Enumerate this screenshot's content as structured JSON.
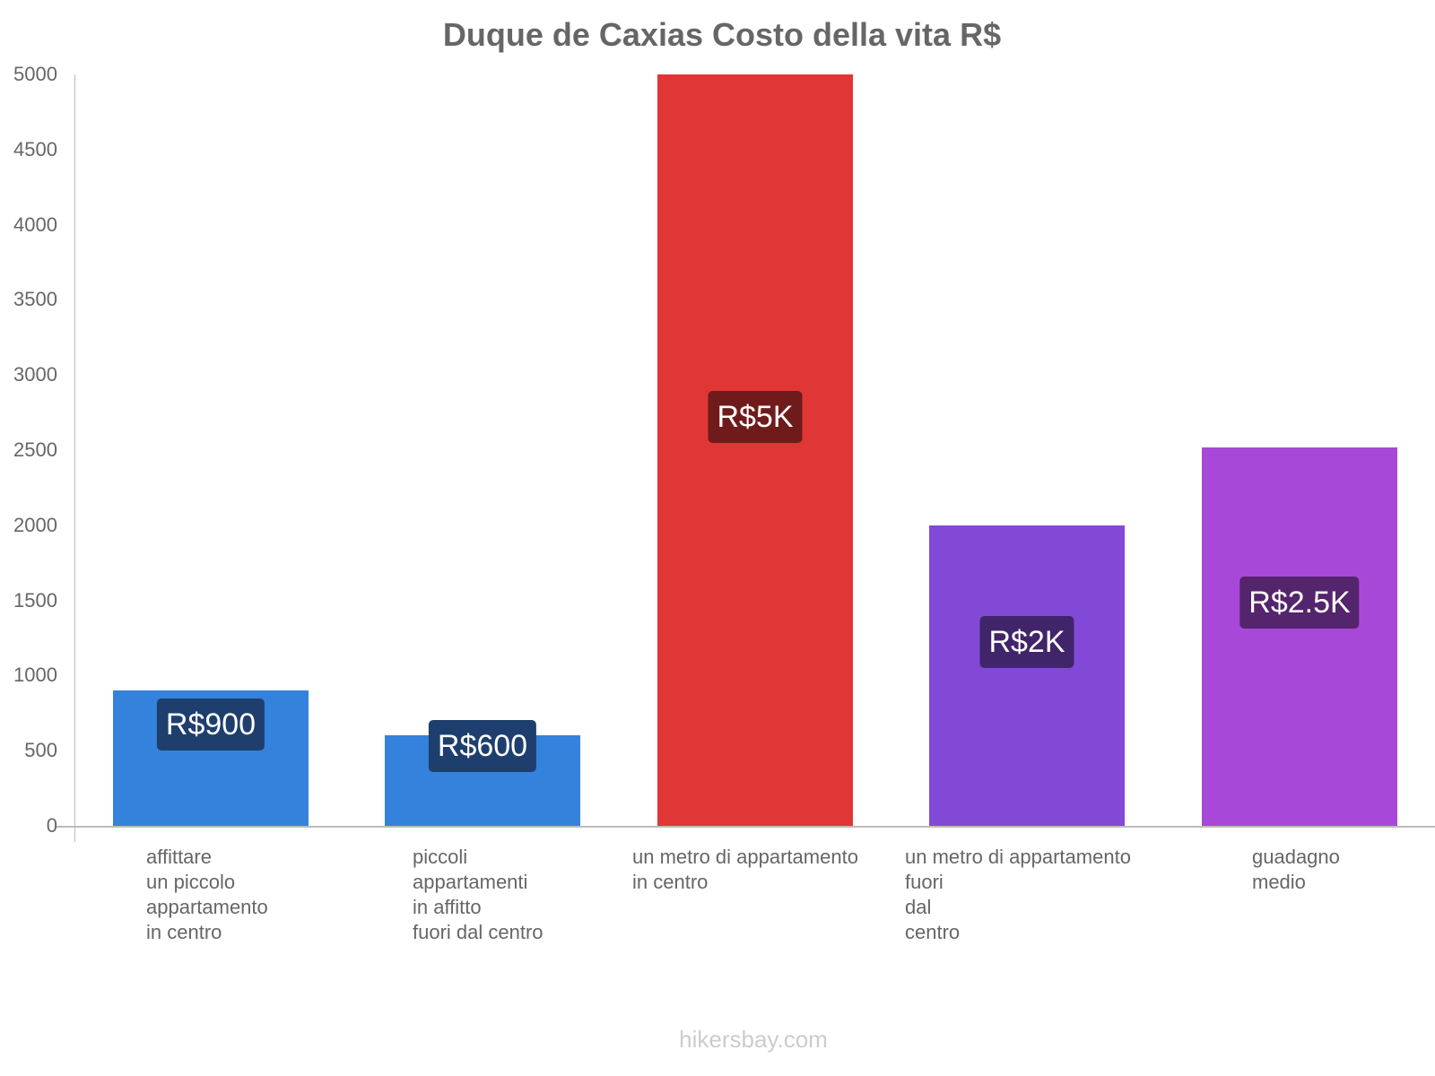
{
  "chart_data": {
    "type": "bar",
    "title": "Duque de Caxias Costo della vita R$",
    "xlabel": "",
    "ylabel": "",
    "ylim": [
      0,
      5000
    ],
    "yticks": [
      "0",
      "500",
      "1000",
      "1500",
      "2000",
      "2500",
      "3000",
      "3500",
      "4000",
      "4500",
      "5000"
    ],
    "grid": false,
    "legend": null,
    "categories": [
      "affittare\nun piccolo\nappartamento\nin centro",
      "piccoli\nappartamenti\nin affitto\nfuori dal centro",
      "un metro di appartamento\nin centro",
      "un metro di appartamento\nfuori\ndal\ncentro",
      "guadagno\nmedio"
    ],
    "values": [
      900,
      600,
      5000,
      2000,
      2520
    ],
    "data_labels": [
      "R$900",
      "R$600",
      "R$5K",
      "R$2K",
      "R$2.5K"
    ],
    "colors": [
      "#3582dc",
      "#3582dc",
      "#e13636",
      "#8249d7",
      "#a848d8"
    ],
    "label_colors": [
      "#1e3f6e",
      "#1e3f6e",
      "#701b1b",
      "#41256b",
      "#54246c"
    ]
  },
  "footer": {
    "watermark": "hikersbay.com"
  }
}
